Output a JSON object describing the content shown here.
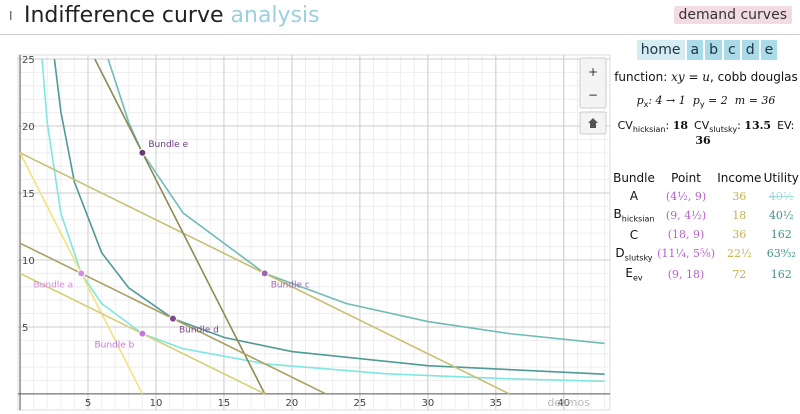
{
  "header": {
    "title": "Indifference curve",
    "title_accent": "analysis",
    "cursor": "I",
    "button": "demand curves"
  },
  "nav": [
    "home",
    "a",
    "b",
    "c",
    "d",
    "e"
  ],
  "controls": [
    "+",
    "−"
  ],
  "info": {
    "function_label": "function:",
    "function": "xy = u",
    "function_note": ", cobb douglas",
    "prices": [
      "p",
      "x",
      ": 4 → 1",
      "p",
      "y",
      " = 2",
      "m = 36"
    ],
    "cv": [
      {
        "label": "CV",
        "sub": "hicksian",
        "value": "18"
      },
      {
        "label": "CV",
        "sub": "slutsky",
        "value": "13.5"
      },
      {
        "label": "EV",
        "sub": "",
        "value": "36"
      }
    ]
  },
  "table": {
    "header": [
      "Bundle",
      "Point",
      "Income",
      "Utility"
    ],
    "rows": [
      [
        {
          "name": "A",
          "sub": ""
        },
        "(4½, 9)",
        "36",
        "40½"
      ],
      [
        {
          "name": "B",
          "sub": "hicksian"
        },
        "(9, 4½)",
        "18",
        "40½"
      ],
      [
        {
          "name": "C",
          "sub": ""
        },
        "(18, 9)",
        "36",
        "162"
      ],
      [
        {
          "name": "D",
          "sub": "slutsky"
        },
        "(11¼, 5⅝)",
        "22½",
        "63⁹⁄₃₂"
      ],
      [
        {
          "name": "E",
          "sub": "ev"
        },
        "(9, 18)",
        "72",
        "162"
      ]
    ]
  },
  "chart_data": {
    "type": "line",
    "xlim": [
      -0.15,
      43.4
    ],
    "ylim": [
      -1.2,
      25.3
    ],
    "xticks": [
      5,
      10,
      15,
      20,
      25,
      30,
      35,
      40
    ],
    "yticks": [
      5,
      10,
      15,
      20,
      25
    ],
    "grid": true,
    "watermark": "desmos",
    "series": [
      {
        "color": "#7fe6e0",
        "x": [
          1.62,
          2,
          3,
          4.5,
          6,
          9,
          12,
          18,
          27,
          36,
          43
        ],
        "values": [
          25,
          20.25,
          13.5,
          9,
          6.75,
          4.5,
          3.375,
          2.25,
          1.5,
          1.125,
          0.94
        ]
      },
      {
        "color": "#4f9a96",
        "x": [
          2.53,
          3,
          4,
          6,
          8,
          11.25,
          15,
          20,
          30,
          43
        ],
        "values": [
          25,
          21.09,
          15.82,
          10.55,
          7.91,
          5.625,
          4.22,
          3.16,
          2.11,
          1.47
        ]
      },
      {
        "color": "#6fbcb6",
        "x": [
          6.48,
          8,
          9,
          12,
          18,
          24,
          30,
          36,
          43
        ],
        "values": [
          25,
          20.25,
          18,
          13.5,
          9,
          6.75,
          5.4,
          4.5,
          3.77
        ]
      },
      {
        "color": "#f3e27c",
        "x": [
          0,
          9
        ],
        "values": [
          18,
          0
        ]
      },
      {
        "color": "#c9bf72",
        "x": [
          0,
          36
        ],
        "values": [
          18,
          0
        ]
      },
      {
        "color": "#8a8a55",
        "x": [
          5.5,
          18
        ],
        "values": [
          25,
          0
        ]
      },
      {
        "color": "#a9a062",
        "x": [
          0,
          22.5
        ],
        "values": [
          11.25,
          0
        ]
      },
      {
        "color": "#d8cf7c",
        "x": [
          0,
          18
        ],
        "values": [
          9,
          0
        ]
      }
    ],
    "points": [
      {
        "label": "Bundle a",
        "x": 4.5,
        "y": 9,
        "color": "#d48be0"
      },
      {
        "label": "Bundle b",
        "x": 9,
        "y": 4.5,
        "color": "#c27ad4"
      },
      {
        "label": "Bundle c",
        "x": 18,
        "y": 9,
        "color": "#a066b0"
      },
      {
        "label": "Bundle d",
        "x": 11.25,
        "y": 5.625,
        "color": "#7a4a8a"
      },
      {
        "label": "Bundle e",
        "x": 9,
        "y": 18,
        "color": "#6b3a7a"
      }
    ]
  }
}
